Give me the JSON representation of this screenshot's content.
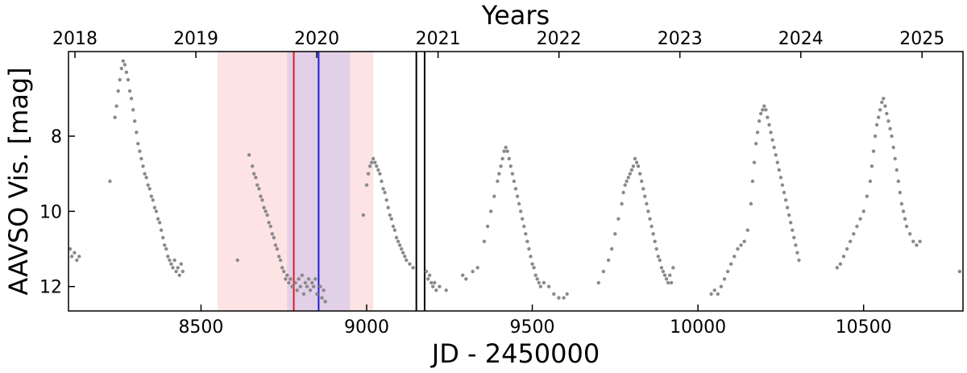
{
  "chart_data": {
    "type": "scatter",
    "title": "",
    "xlabel": "JD - 2450000",
    "ylabel": "AAVSO Vis. [mag]",
    "top_axis_label": "Years",
    "xlim": [
      8100,
      10800
    ],
    "ylim": [
      12.65,
      5.75
    ],
    "y_inverted": true,
    "grid": false,
    "x_ticks": [
      8500,
      9000,
      9500,
      10000,
      10500
    ],
    "x_tick_labels": [
      "8500",
      "9000",
      "9500",
      "10000",
      "10500"
    ],
    "y_ticks": [
      8,
      10,
      12
    ],
    "y_tick_labels": [
      "8",
      "10",
      "12"
    ],
    "year_ticks": [
      {
        "label": "2018",
        "jd": 8119.5
      },
      {
        "label": "2019",
        "jd": 8484.5
      },
      {
        "label": "2020",
        "jd": 8849.5
      },
      {
        "label": "2021",
        "jd": 9215.5
      },
      {
        "label": "2022",
        "jd": 9580.5
      },
      {
        "label": "2023",
        "jd": 9945.5
      },
      {
        "label": "2024",
        "jd": 10310.5
      },
      {
        "label": "2025",
        "jd": 10676.5
      }
    ],
    "shaded_regions": [
      {
        "x0": 8550,
        "x1": 9020,
        "color": "#fde3e3"
      },
      {
        "x0": 8760,
        "x1": 8950,
        "color": "#e2cfe8"
      }
    ],
    "vertical_lines": [
      {
        "x": 8780,
        "color": "#e31a1c"
      },
      {
        "x": 8855,
        "color": "#1f1fd0"
      },
      {
        "x": 9150,
        "color": "#000000"
      },
      {
        "x": 9175,
        "color": "#000000"
      }
    ],
    "marker_color": "#8a8a8a",
    "light_curve": [
      {
        "x": 8105,
        "y": 11.0
      },
      {
        "x": 8110,
        "y": 11.2
      },
      {
        "x": 8118,
        "y": 11.1
      },
      {
        "x": 8125,
        "y": 11.3
      },
      {
        "x": 8132,
        "y": 11.2
      },
      {
        "x": 8225,
        "y": 9.2
      },
      {
        "x": 8240,
        "y": 7.5
      },
      {
        "x": 8245,
        "y": 7.2
      },
      {
        "x": 8250,
        "y": 6.8
      },
      {
        "x": 8255,
        "y": 6.5
      },
      {
        "x": 8260,
        "y": 6.2
      },
      {
        "x": 8265,
        "y": 6.0
      },
      {
        "x": 8270,
        "y": 6.1
      },
      {
        "x": 8275,
        "y": 6.3
      },
      {
        "x": 8280,
        "y": 6.5
      },
      {
        "x": 8285,
        "y": 6.8
      },
      {
        "x": 8290,
        "y": 7.0
      },
      {
        "x": 8295,
        "y": 7.3
      },
      {
        "x": 8300,
        "y": 7.6
      },
      {
        "x": 8305,
        "y": 7.9
      },
      {
        "x": 8310,
        "y": 8.2
      },
      {
        "x": 8315,
        "y": 8.4
      },
      {
        "x": 8320,
        "y": 8.6
      },
      {
        "x": 8325,
        "y": 8.8
      },
      {
        "x": 8330,
        "y": 9.0
      },
      {
        "x": 8335,
        "y": 9.1
      },
      {
        "x": 8340,
        "y": 9.3
      },
      {
        "x": 8345,
        "y": 9.4
      },
      {
        "x": 8350,
        "y": 9.6
      },
      {
        "x": 8355,
        "y": 9.7
      },
      {
        "x": 8360,
        "y": 9.9
      },
      {
        "x": 8365,
        "y": 10.0
      },
      {
        "x": 8370,
        "y": 10.2
      },
      {
        "x": 8375,
        "y": 10.3
      },
      {
        "x": 8380,
        "y": 10.5
      },
      {
        "x": 8385,
        "y": 10.7
      },
      {
        "x": 8390,
        "y": 10.9
      },
      {
        "x": 8395,
        "y": 11.0
      },
      {
        "x": 8400,
        "y": 11.2
      },
      {
        "x": 8405,
        "y": 11.3
      },
      {
        "x": 8410,
        "y": 11.4
      },
      {
        "x": 8415,
        "y": 11.5
      },
      {
        "x": 8420,
        "y": 11.3
      },
      {
        "x": 8425,
        "y": 11.6
      },
      {
        "x": 8430,
        "y": 11.5
      },
      {
        "x": 8435,
        "y": 11.7
      },
      {
        "x": 8440,
        "y": 11.4
      },
      {
        "x": 8445,
        "y": 11.6
      },
      {
        "x": 8610,
        "y": 11.3
      },
      {
        "x": 8645,
        "y": 8.5
      },
      {
        "x": 8655,
        "y": 8.8
      },
      {
        "x": 8660,
        "y": 9.0
      },
      {
        "x": 8665,
        "y": 9.1
      },
      {
        "x": 8670,
        "y": 9.3
      },
      {
        "x": 8675,
        "y": 9.4
      },
      {
        "x": 8680,
        "y": 9.6
      },
      {
        "x": 8685,
        "y": 9.7
      },
      {
        "x": 8690,
        "y": 9.9
      },
      {
        "x": 8695,
        "y": 10.0
      },
      {
        "x": 8700,
        "y": 10.1
      },
      {
        "x": 8705,
        "y": 10.3
      },
      {
        "x": 8710,
        "y": 10.4
      },
      {
        "x": 8715,
        "y": 10.6
      },
      {
        "x": 8720,
        "y": 10.7
      },
      {
        "x": 8725,
        "y": 10.9
      },
      {
        "x": 8730,
        "y": 11.0
      },
      {
        "x": 8735,
        "y": 11.2
      },
      {
        "x": 8740,
        "y": 11.3
      },
      {
        "x": 8745,
        "y": 11.5
      },
      {
        "x": 8750,
        "y": 11.6
      },
      {
        "x": 8755,
        "y": 11.8
      },
      {
        "x": 8760,
        "y": 11.7
      },
      {
        "x": 8765,
        "y": 11.9
      },
      {
        "x": 8770,
        "y": 11.8
      },
      {
        "x": 8775,
        "y": 12.0
      },
      {
        "x": 8785,
        "y": 11.9
      },
      {
        "x": 8790,
        "y": 12.1
      },
      {
        "x": 8795,
        "y": 11.8
      },
      {
        "x": 8800,
        "y": 12.0
      },
      {
        "x": 8805,
        "y": 11.7
      },
      {
        "x": 8810,
        "y": 12.2
      },
      {
        "x": 8815,
        "y": 11.9
      },
      {
        "x": 8820,
        "y": 12.0
      },
      {
        "x": 8825,
        "y": 11.8
      },
      {
        "x": 8830,
        "y": 12.1
      },
      {
        "x": 8835,
        "y": 11.9
      },
      {
        "x": 8840,
        "y": 12.0
      },
      {
        "x": 8845,
        "y": 11.8
      },
      {
        "x": 8850,
        "y": 12.2
      },
      {
        "x": 8860,
        "y": 12.0
      },
      {
        "x": 8865,
        "y": 12.3
      },
      {
        "x": 8870,
        "y": 12.1
      },
      {
        "x": 8875,
        "y": 12.4
      },
      {
        "x": 8990,
        "y": 10.1
      },
      {
        "x": 9000,
        "y": 9.3
      },
      {
        "x": 9005,
        "y": 9.0
      },
      {
        "x": 9010,
        "y": 8.8
      },
      {
        "x": 9015,
        "y": 8.7
      },
      {
        "x": 9020,
        "y": 8.6
      },
      {
        "x": 9025,
        "y": 8.7
      },
      {
        "x": 9030,
        "y": 8.8
      },
      {
        "x": 9035,
        "y": 8.9
      },
      {
        "x": 9040,
        "y": 9.0
      },
      {
        "x": 9045,
        "y": 9.2
      },
      {
        "x": 9050,
        "y": 9.4
      },
      {
        "x": 9055,
        "y": 9.5
      },
      {
        "x": 9060,
        "y": 9.7
      },
      {
        "x": 9065,
        "y": 9.9
      },
      {
        "x": 9070,
        "y": 10.1
      },
      {
        "x": 9075,
        "y": 10.2
      },
      {
        "x": 9080,
        "y": 10.4
      },
      {
        "x": 9085,
        "y": 10.5
      },
      {
        "x": 9090,
        "y": 10.7
      },
      {
        "x": 9095,
        "y": 10.8
      },
      {
        "x": 9100,
        "y": 10.9
      },
      {
        "x": 9105,
        "y": 11.0
      },
      {
        "x": 9110,
        "y": 11.1
      },
      {
        "x": 9115,
        "y": 11.2
      },
      {
        "x": 9120,
        "y": 11.3
      },
      {
        "x": 9130,
        "y": 11.4
      },
      {
        "x": 9140,
        "y": 11.5
      },
      {
        "x": 9180,
        "y": 11.6
      },
      {
        "x": 9185,
        "y": 11.8
      },
      {
        "x": 9190,
        "y": 11.7
      },
      {
        "x": 9195,
        "y": 11.9
      },
      {
        "x": 9200,
        "y": 12.0
      },
      {
        "x": 9205,
        "y": 11.9
      },
      {
        "x": 9210,
        "y": 12.1
      },
      {
        "x": 9220,
        "y": 12.0
      },
      {
        "x": 9240,
        "y": 12.1
      },
      {
        "x": 9290,
        "y": 11.7
      },
      {
        "x": 9300,
        "y": 11.8
      },
      {
        "x": 9320,
        "y": 11.6
      },
      {
        "x": 9335,
        "y": 11.5
      },
      {
        "x": 9355,
        "y": 10.8
      },
      {
        "x": 9365,
        "y": 10.4
      },
      {
        "x": 9375,
        "y": 10.0
      },
      {
        "x": 9385,
        "y": 9.6
      },
      {
        "x": 9395,
        "y": 9.2
      },
      {
        "x": 9400,
        "y": 9.0
      },
      {
        "x": 9405,
        "y": 8.8
      },
      {
        "x": 9410,
        "y": 8.6
      },
      {
        "x": 9415,
        "y": 8.4
      },
      {
        "x": 9420,
        "y": 8.3
      },
      {
        "x": 9425,
        "y": 8.4
      },
      {
        "x": 9430,
        "y": 8.6
      },
      {
        "x": 9435,
        "y": 8.8
      },
      {
        "x": 9440,
        "y": 9.0
      },
      {
        "x": 9445,
        "y": 9.2
      },
      {
        "x": 9450,
        "y": 9.4
      },
      {
        "x": 9455,
        "y": 9.6
      },
      {
        "x": 9460,
        "y": 9.8
      },
      {
        "x": 9465,
        "y": 10.0
      },
      {
        "x": 9470,
        "y": 10.2
      },
      {
        "x": 9475,
        "y": 10.4
      },
      {
        "x": 9480,
        "y": 10.6
      },
      {
        "x": 9485,
        "y": 10.8
      },
      {
        "x": 9490,
        "y": 11.0
      },
      {
        "x": 9495,
        "y": 11.2
      },
      {
        "x": 9500,
        "y": 11.4
      },
      {
        "x": 9505,
        "y": 11.5
      },
      {
        "x": 9510,
        "y": 11.7
      },
      {
        "x": 9515,
        "y": 11.8
      },
      {
        "x": 9520,
        "y": 11.9
      },
      {
        "x": 9525,
        "y": 12.0
      },
      {
        "x": 9535,
        "y": 11.9
      },
      {
        "x": 9550,
        "y": 12.0
      },
      {
        "x": 9565,
        "y": 12.2
      },
      {
        "x": 9580,
        "y": 12.3
      },
      {
        "x": 9595,
        "y": 12.3
      },
      {
        "x": 9605,
        "y": 12.2
      },
      {
        "x": 9700,
        "y": 11.9
      },
      {
        "x": 9715,
        "y": 11.6
      },
      {
        "x": 9730,
        "y": 11.3
      },
      {
        "x": 9740,
        "y": 11.0
      },
      {
        "x": 9750,
        "y": 10.6
      },
      {
        "x": 9760,
        "y": 10.2
      },
      {
        "x": 9770,
        "y": 9.8
      },
      {
        "x": 9775,
        "y": 9.5
      },
      {
        "x": 9780,
        "y": 9.3
      },
      {
        "x": 9785,
        "y": 9.2
      },
      {
        "x": 9790,
        "y": 9.1
      },
      {
        "x": 9795,
        "y": 9.0
      },
      {
        "x": 9800,
        "y": 8.9
      },
      {
        "x": 9805,
        "y": 8.8
      },
      {
        "x": 9810,
        "y": 8.6
      },
      {
        "x": 9815,
        "y": 8.7
      },
      {
        "x": 9820,
        "y": 8.8
      },
      {
        "x": 9825,
        "y": 9.0
      },
      {
        "x": 9830,
        "y": 9.2
      },
      {
        "x": 9835,
        "y": 9.4
      },
      {
        "x": 9840,
        "y": 9.6
      },
      {
        "x": 9845,
        "y": 9.8
      },
      {
        "x": 9850,
        "y": 10.0
      },
      {
        "x": 9855,
        "y": 10.2
      },
      {
        "x": 9860,
        "y": 10.4
      },
      {
        "x": 9865,
        "y": 10.6
      },
      {
        "x": 9870,
        "y": 10.8
      },
      {
        "x": 9875,
        "y": 11.0
      },
      {
        "x": 9880,
        "y": 11.2
      },
      {
        "x": 9885,
        "y": 11.3
      },
      {
        "x": 9890,
        "y": 11.5
      },
      {
        "x": 9895,
        "y": 11.6
      },
      {
        "x": 9900,
        "y": 11.7
      },
      {
        "x": 9905,
        "y": 11.8
      },
      {
        "x": 9910,
        "y": 11.9
      },
      {
        "x": 9915,
        "y": 11.7
      },
      {
        "x": 9920,
        "y": 11.9
      },
      {
        "x": 9925,
        "y": 11.5
      },
      {
        "x": 10040,
        "y": 12.2
      },
      {
        "x": 10050,
        "y": 12.1
      },
      {
        "x": 10060,
        "y": 12.2
      },
      {
        "x": 10070,
        "y": 12.0
      },
      {
        "x": 10080,
        "y": 11.8
      },
      {
        "x": 10090,
        "y": 11.6
      },
      {
        "x": 10100,
        "y": 11.4
      },
      {
        "x": 10110,
        "y": 11.2
      },
      {
        "x": 10120,
        "y": 11.0
      },
      {
        "x": 10130,
        "y": 10.9
      },
      {
        "x": 10140,
        "y": 10.8
      },
      {
        "x": 10150,
        "y": 10.5
      },
      {
        "x": 10160,
        "y": 9.8
      },
      {
        "x": 10165,
        "y": 9.2
      },
      {
        "x": 10170,
        "y": 8.7
      },
      {
        "x": 10175,
        "y": 8.2
      },
      {
        "x": 10180,
        "y": 7.9
      },
      {
        "x": 10185,
        "y": 7.6
      },
      {
        "x": 10190,
        "y": 7.4
      },
      {
        "x": 10195,
        "y": 7.3
      },
      {
        "x": 10200,
        "y": 7.2
      },
      {
        "x": 10205,
        "y": 7.3
      },
      {
        "x": 10210,
        "y": 7.5
      },
      {
        "x": 10215,
        "y": 7.7
      },
      {
        "x": 10220,
        "y": 7.9
      },
      {
        "x": 10225,
        "y": 8.1
      },
      {
        "x": 10230,
        "y": 8.3
      },
      {
        "x": 10235,
        "y": 8.5
      },
      {
        "x": 10240,
        "y": 8.7
      },
      {
        "x": 10245,
        "y": 8.9
      },
      {
        "x": 10250,
        "y": 9.1
      },
      {
        "x": 10255,
        "y": 9.3
      },
      {
        "x": 10260,
        "y": 9.5
      },
      {
        "x": 10265,
        "y": 9.7
      },
      {
        "x": 10270,
        "y": 9.9
      },
      {
        "x": 10275,
        "y": 10.1
      },
      {
        "x": 10280,
        "y": 10.3
      },
      {
        "x": 10285,
        "y": 10.5
      },
      {
        "x": 10290,
        "y": 10.7
      },
      {
        "x": 10295,
        "y": 10.9
      },
      {
        "x": 10300,
        "y": 11.1
      },
      {
        "x": 10305,
        "y": 11.3
      },
      {
        "x": 10420,
        "y": 11.5
      },
      {
        "x": 10430,
        "y": 11.4
      },
      {
        "x": 10440,
        "y": 11.2
      },
      {
        "x": 10450,
        "y": 11.0
      },
      {
        "x": 10460,
        "y": 10.8
      },
      {
        "x": 10470,
        "y": 10.6
      },
      {
        "x": 10480,
        "y": 10.4
      },
      {
        "x": 10490,
        "y": 10.2
      },
      {
        "x": 10500,
        "y": 10.0
      },
      {
        "x": 10510,
        "y": 9.6
      },
      {
        "x": 10520,
        "y": 9.2
      },
      {
        "x": 10525,
        "y": 8.8
      },
      {
        "x": 10530,
        "y": 8.4
      },
      {
        "x": 10535,
        "y": 8.0
      },
      {
        "x": 10540,
        "y": 7.7
      },
      {
        "x": 10545,
        "y": 7.5
      },
      {
        "x": 10550,
        "y": 7.3
      },
      {
        "x": 10555,
        "y": 7.1
      },
      {
        "x": 10560,
        "y": 7.0
      },
      {
        "x": 10565,
        "y": 7.2
      },
      {
        "x": 10570,
        "y": 7.4
      },
      {
        "x": 10575,
        "y": 7.6
      },
      {
        "x": 10580,
        "y": 7.8
      },
      {
        "x": 10585,
        "y": 8.0
      },
      {
        "x": 10590,
        "y": 8.3
      },
      {
        "x": 10595,
        "y": 8.6
      },
      {
        "x": 10600,
        "y": 8.9
      },
      {
        "x": 10605,
        "y": 9.2
      },
      {
        "x": 10610,
        "y": 9.5
      },
      {
        "x": 10615,
        "y": 9.8
      },
      {
        "x": 10620,
        "y": 10.0
      },
      {
        "x": 10625,
        "y": 10.2
      },
      {
        "x": 10630,
        "y": 10.4
      },
      {
        "x": 10640,
        "y": 10.6
      },
      {
        "x": 10650,
        "y": 10.8
      },
      {
        "x": 10660,
        "y": 10.9
      },
      {
        "x": 10670,
        "y": 10.8
      },
      {
        "x": 10790,
        "y": 11.6
      }
    ]
  }
}
